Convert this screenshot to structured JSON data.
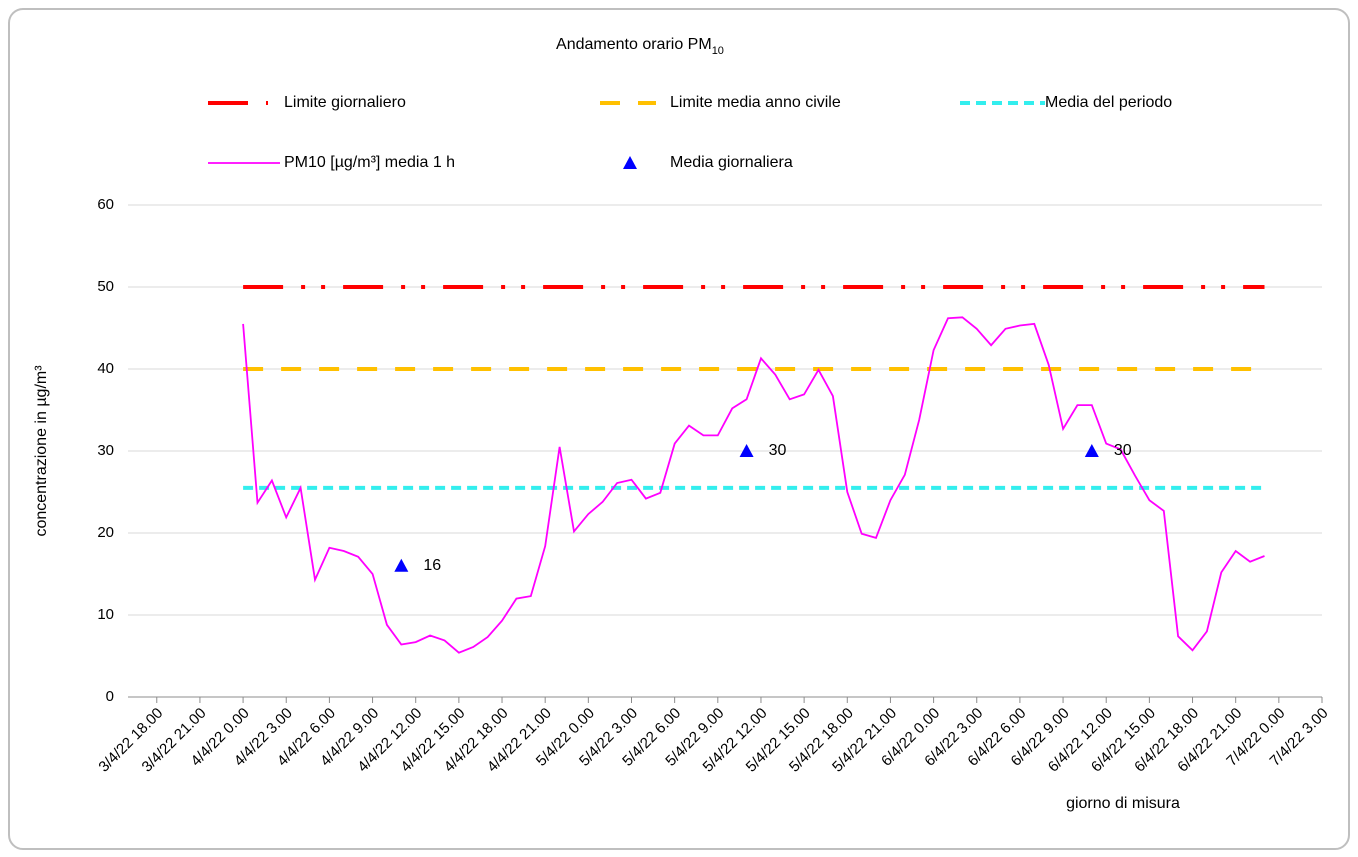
{
  "chart_data": {
    "type": "line",
    "title": "Andamento orario PM",
    "title_subscript": "10",
    "y_label": "concentrazione in µg/m³",
    "x_label": "giorno di misura",
    "ylim": [
      0,
      60
    ],
    "yticks": [
      0,
      10,
      20,
      30,
      40,
      50,
      60
    ],
    "xlim": [
      -2,
      81
    ],
    "xticks": [
      {
        "value": 0,
        "label": "3/4/22 18.00"
      },
      {
        "value": 3,
        "label": "3/4/22 21.00"
      },
      {
        "value": 6,
        "label": "4/4/22 0.00"
      },
      {
        "value": 9,
        "label": "4/4/22 3.00"
      },
      {
        "value": 12,
        "label": "4/4/22 6.00"
      },
      {
        "value": 15,
        "label": "4/4/22 9.00"
      },
      {
        "value": 18,
        "label": "4/4/22 12.00"
      },
      {
        "value": 21,
        "label": "4/4/22 15.00"
      },
      {
        "value": 24,
        "label": "4/4/22 18.00"
      },
      {
        "value": 27,
        "label": "4/4/22 21.00"
      },
      {
        "value": 30,
        "label": "5/4/22 0.00"
      },
      {
        "value": 33,
        "label": "5/4/22 3.00"
      },
      {
        "value": 36,
        "label": "5/4/22 6.00"
      },
      {
        "value": 39,
        "label": "5/4/22 9.00"
      },
      {
        "value": 42,
        "label": "5/4/22 12.00"
      },
      {
        "value": 45,
        "label": "5/4/22 15.00"
      },
      {
        "value": 48,
        "label": "5/4/22 18.00"
      },
      {
        "value": 51,
        "label": "5/4/22 21.00"
      },
      {
        "value": 54,
        "label": "6/4/22 0.00"
      },
      {
        "value": 57,
        "label": "6/4/22 3.00"
      },
      {
        "value": 60,
        "label": "6/4/22 6.00"
      },
      {
        "value": 63,
        "label": "6/4/22 9.00"
      },
      {
        "value": 66,
        "label": "6/4/22 12.00"
      },
      {
        "value": 69,
        "label": "6/4/22 15.00"
      },
      {
        "value": 72,
        "label": "6/4/22 18.00"
      },
      {
        "value": 75,
        "label": "6/4/22 21.00"
      },
      {
        "value": 78,
        "label": "7/4/22 0.00"
      },
      {
        "value": 81,
        "label": "7/4/22 3.00"
      }
    ],
    "grid": true,
    "series": [
      {
        "name": "Limite giornaliero",
        "color": "#ff0000",
        "style": "dash-dot-dot",
        "x": [
          6,
          77
        ],
        "values": [
          50,
          50
        ]
      },
      {
        "name": "Limite media anno civile",
        "color": "#ffc000",
        "style": "dash",
        "x": [
          6,
          77
        ],
        "values": [
          40,
          40
        ]
      },
      {
        "name": "Media del periodo",
        "color": "#33eeee",
        "style": "short-dash",
        "x": [
          6,
          77
        ],
        "values": [
          25.5,
          25.5
        ]
      },
      {
        "name": "PM10 [µg/m³]   media 1 h",
        "color": "#ff00ff",
        "style": "solid",
        "x": [
          6,
          7,
          8,
          9,
          10,
          11,
          12,
          13,
          14,
          15,
          16,
          17,
          18,
          19,
          20,
          21,
          22,
          23,
          24,
          25,
          26,
          27,
          28,
          29,
          30,
          31,
          32,
          33,
          34,
          35,
          36,
          37,
          38,
          39,
          40,
          41,
          42,
          43,
          44,
          45,
          46,
          47,
          48,
          49,
          50,
          51,
          52,
          53,
          54,
          55,
          56,
          57,
          58,
          59,
          60,
          61,
          62,
          63,
          64,
          65,
          66,
          67,
          68,
          69,
          70,
          71,
          72,
          73,
          74,
          75,
          76,
          77
        ],
        "values": [
          45.5,
          23.7,
          26.4,
          21.9,
          25.5,
          14.3,
          18.2,
          17.8,
          17.1,
          15.0,
          8.8,
          6.4,
          6.7,
          7.5,
          6.9,
          5.4,
          6.1,
          7.3,
          9.3,
          12.0,
          12.3,
          18.4,
          30.5,
          20.2,
          22.3,
          23.8,
          26.1,
          26.5,
          24.2,
          24.9,
          30.9,
          33.1,
          31.9,
          31.9,
          35.2,
          36.3,
          41.3,
          39.3,
          36.3,
          36.9,
          39.9,
          36.7,
          25.0,
          19.9,
          19.4,
          24.0,
          27.1,
          33.8,
          42.3,
          46.2,
          46.3,
          44.9,
          42.9,
          44.9,
          45.3,
          45.5,
          40.5,
          32.7,
          35.6,
          35.6,
          30.9,
          30.2,
          27.0,
          24.0,
          22.7,
          7.4,
          5.7,
          8.0,
          15.2,
          17.8,
          16.5,
          17.2
        ]
      },
      {
        "name": "Media giornaliera",
        "color": "#0000ff",
        "style": "triangle",
        "x": [
          17,
          41,
          65
        ],
        "values": [
          16,
          30,
          30
        ]
      }
    ]
  }
}
